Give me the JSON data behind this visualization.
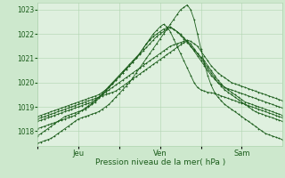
{
  "title": "",
  "xlabel": "Pression niveau de la mer( hPa )",
  "ylim": [
    1017.4,
    1023.3
  ],
  "yticks": [
    1018,
    1019,
    1020,
    1021,
    1022,
    1023
  ],
  "bg_color": "#cde8cd",
  "plot_bg_color": "#dff0df",
  "line_color": "#1a5c1a",
  "grid_color": "#b0d4b0",
  "xtick_labels": [
    "",
    "Jeu",
    "",
    "Ven",
    "",
    "Sam"
  ],
  "xtick_positions": [
    0,
    12,
    24,
    36,
    48,
    60
  ],
  "total_points": 73,
  "lines": [
    [
      1017.8,
      1017.9,
      1018.0,
      1018.1,
      1018.2,
      1018.3,
      1018.4,
      1018.5,
      1018.6,
      1018.65,
      1018.7,
      1018.75,
      1018.8,
      1018.85,
      1018.9,
      1019.0,
      1019.1,
      1019.2,
      1019.35,
      1019.5,
      1019.65,
      1019.8,
      1019.95,
      1020.1,
      1020.25,
      1020.4,
      1020.55,
      1020.7,
      1020.85,
      1021.0,
      1021.2,
      1021.4,
      1021.6,
      1021.8,
      1022.0,
      1022.15,
      1022.3,
      1022.4,
      1022.3,
      1022.1,
      1021.8,
      1021.5,
      1021.2,
      1020.9,
      1020.6,
      1020.3,
      1020.0,
      1019.8,
      1019.7,
      1019.65,
      1019.6,
      1019.58,
      1019.55,
      1019.5,
      1019.45,
      1019.4,
      1019.35,
      1019.3,
      1019.25,
      1019.2,
      1019.15,
      1019.1,
      1019.05,
      1019.0,
      1018.95,
      1018.9,
      1018.85,
      1018.8,
      1018.75,
      1018.7,
      1018.65,
      1018.6,
      1018.55
    ],
    [
      1018.1,
      1018.15,
      1018.2,
      1018.25,
      1018.3,
      1018.35,
      1018.4,
      1018.45,
      1018.5,
      1018.55,
      1018.6,
      1018.65,
      1018.75,
      1018.85,
      1018.95,
      1019.05,
      1019.15,
      1019.25,
      1019.4,
      1019.55,
      1019.7,
      1019.85,
      1020.0,
      1020.15,
      1020.3,
      1020.45,
      1020.6,
      1020.75,
      1020.9,
      1021.05,
      1021.2,
      1021.4,
      1021.6,
      1021.75,
      1021.9,
      1022.0,
      1022.1,
      1022.2,
      1022.25,
      1022.3,
      1022.2,
      1022.1,
      1022.0,
      1021.85,
      1021.7,
      1021.5,
      1021.3,
      1021.1,
      1020.9,
      1020.7,
      1020.5,
      1020.3,
      1020.15,
      1020.0,
      1019.9,
      1019.8,
      1019.75,
      1019.7,
      1019.65,
      1019.6,
      1019.55,
      1019.5,
      1019.45,
      1019.4,
      1019.35,
      1019.3,
      1019.25,
      1019.2,
      1019.15,
      1019.1,
      1019.05,
      1019.0,
      1018.95
    ],
    [
      1018.4,
      1018.45,
      1018.5,
      1018.55,
      1018.6,
      1018.65,
      1018.7,
      1018.75,
      1018.8,
      1018.85,
      1018.9,
      1018.95,
      1019.0,
      1019.05,
      1019.1,
      1019.15,
      1019.2,
      1019.3,
      1019.4,
      1019.5,
      1019.6,
      1019.7,
      1019.8,
      1019.9,
      1020.0,
      1020.1,
      1020.2,
      1020.3,
      1020.4,
      1020.5,
      1020.6,
      1020.7,
      1020.8,
      1020.9,
      1021.0,
      1021.1,
      1021.2,
      1021.3,
      1021.4,
      1021.5,
      1021.55,
      1021.6,
      1021.65,
      1021.7,
      1021.75,
      1021.7,
      1021.6,
      1021.5,
      1021.3,
      1021.1,
      1020.9,
      1020.7,
      1020.55,
      1020.4,
      1020.3,
      1020.2,
      1020.1,
      1020.0,
      1019.95,
      1019.9,
      1019.85,
      1019.8,
      1019.75,
      1019.7,
      1019.65,
      1019.6,
      1019.55,
      1019.5,
      1019.45,
      1019.4,
      1019.35,
      1019.3,
      1019.25
    ],
    [
      1018.5,
      1018.55,
      1018.6,
      1018.65,
      1018.7,
      1018.75,
      1018.8,
      1018.85,
      1018.9,
      1018.95,
      1019.0,
      1019.05,
      1019.1,
      1019.15,
      1019.2,
      1019.25,
      1019.3,
      1019.35,
      1019.4,
      1019.45,
      1019.5,
      1019.55,
      1019.6,
      1019.65,
      1019.75,
      1019.85,
      1019.95,
      1020.05,
      1020.15,
      1020.25,
      1020.35,
      1020.45,
      1020.55,
      1020.65,
      1020.75,
      1020.85,
      1020.95,
      1021.05,
      1021.15,
      1021.25,
      1021.35,
      1021.45,
      1021.55,
      1021.65,
      1021.7,
      1021.6,
      1021.4,
      1021.2,
      1021.0,
      1020.8,
      1020.6,
      1020.4,
      1020.2,
      1020.0,
      1019.85,
      1019.7,
      1019.6,
      1019.5,
      1019.4,
      1019.3,
      1019.2,
      1019.1,
      1019.0,
      1018.9,
      1018.8,
      1018.75,
      1018.7,
      1018.65,
      1018.6,
      1018.55,
      1018.5,
      1018.45,
      1018.4
    ],
    [
      1017.5,
      1017.55,
      1017.6,
      1017.65,
      1017.7,
      1017.8,
      1017.9,
      1018.0,
      1018.1,
      1018.2,
      1018.3,
      1018.4,
      1018.5,
      1018.55,
      1018.6,
      1018.65,
      1018.7,
      1018.75,
      1018.8,
      1018.9,
      1019.0,
      1019.1,
      1019.25,
      1019.4,
      1019.55,
      1019.7,
      1019.85,
      1020.0,
      1020.2,
      1020.4,
      1020.6,
      1020.8,
      1021.0,
      1021.2,
      1021.4,
      1021.6,
      1021.8,
      1022.0,
      1022.2,
      1022.4,
      1022.6,
      1022.8,
      1023.0,
      1023.1,
      1023.2,
      1023.0,
      1022.6,
      1022.0,
      1021.4,
      1020.8,
      1020.3,
      1019.9,
      1019.6,
      1019.4,
      1019.25,
      1019.1,
      1019.0,
      1018.9,
      1018.8,
      1018.7,
      1018.6,
      1018.5,
      1018.4,
      1018.3,
      1018.2,
      1018.1,
      1018.0,
      1017.9,
      1017.85,
      1017.8,
      1017.75,
      1017.7,
      1017.65
    ],
    [
      1018.6,
      1018.65,
      1018.7,
      1018.75,
      1018.8,
      1018.85,
      1018.9,
      1018.95,
      1019.0,
      1019.05,
      1019.1,
      1019.15,
      1019.2,
      1019.25,
      1019.3,
      1019.35,
      1019.4,
      1019.45,
      1019.5,
      1019.6,
      1019.7,
      1019.8,
      1019.95,
      1020.1,
      1020.25,
      1020.4,
      1020.55,
      1020.7,
      1020.85,
      1021.0,
      1021.15,
      1021.3,
      1021.45,
      1021.6,
      1021.75,
      1021.9,
      1022.0,
      1022.1,
      1022.2,
      1022.25,
      1022.2,
      1022.1,
      1021.95,
      1021.8,
      1021.65,
      1021.5,
      1021.35,
      1021.2,
      1021.05,
      1020.9,
      1020.7,
      1020.5,
      1020.3,
      1020.1,
      1019.95,
      1019.8,
      1019.7,
      1019.6,
      1019.5,
      1019.4,
      1019.3,
      1019.2,
      1019.15,
      1019.1,
      1019.05,
      1019.0,
      1018.95,
      1018.9,
      1018.85,
      1018.8,
      1018.75,
      1018.7,
      1018.65
    ]
  ],
  "figsize": [
    3.2,
    2.0
  ],
  "dpi": 100
}
